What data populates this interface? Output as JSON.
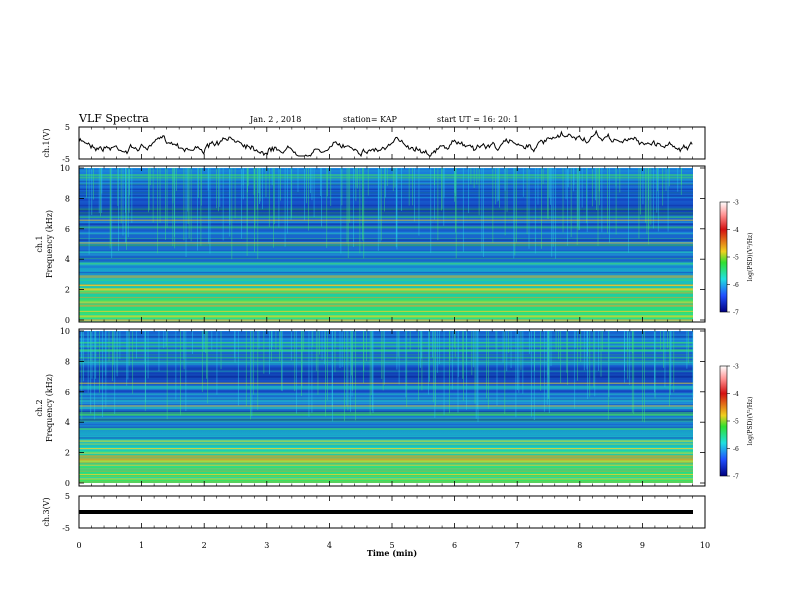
{
  "header": {
    "title": "VLF Spectra",
    "date": "Jan. 2 , 2018",
    "station": "station= KAP",
    "start": "start UT = 16: 20: 1"
  },
  "chart_data": [
    {
      "type": "line",
      "ylabel": "ch.1(V)",
      "ylim": [
        -5,
        5
      ],
      "yticks": [
        "5",
        "-5"
      ],
      "note": "waveform trace"
    },
    {
      "type": "heatmap",
      "ylabel": "Frequency (kHz)",
      "channel_label": "ch.1",
      "ylim": [
        0,
        10
      ],
      "yticks": [
        "0",
        "2",
        "4",
        "6",
        "8",
        "10"
      ],
      "colorbar": {
        "label": "log(PSD)(V²/Hz)",
        "range": [
          -7,
          -3
        ],
        "ticks": [
          "-3",
          "-4",
          "-5",
          "-6",
          "-7"
        ]
      }
    },
    {
      "type": "heatmap",
      "ylabel": "Frequency (kHz)",
      "channel_label": "ch.2",
      "ylim": [
        0,
        10
      ],
      "yticks": [
        "0",
        "2",
        "4",
        "6",
        "8",
        "10"
      ],
      "colorbar": {
        "label": "log(PSD)(V²/Hz)",
        "range": [
          -7,
          -3
        ],
        "ticks": [
          "-3",
          "-4",
          "-5",
          "-6",
          "-7"
        ]
      }
    },
    {
      "type": "line",
      "ylabel": "ch.3(V)",
      "ylim": [
        -5,
        5
      ],
      "yticks": [
        "5",
        "-5"
      ],
      "note": "flat trace"
    }
  ],
  "xaxis": {
    "label": "Time (min)",
    "xlim": [
      0,
      10
    ],
    "ticks": [
      "0",
      "1",
      "2",
      "3",
      "4",
      "5",
      "6",
      "7",
      "8",
      "9",
      "10"
    ]
  },
  "colors": {
    "trace": "#000000",
    "spectrogram_base": "#1e6fd8"
  }
}
